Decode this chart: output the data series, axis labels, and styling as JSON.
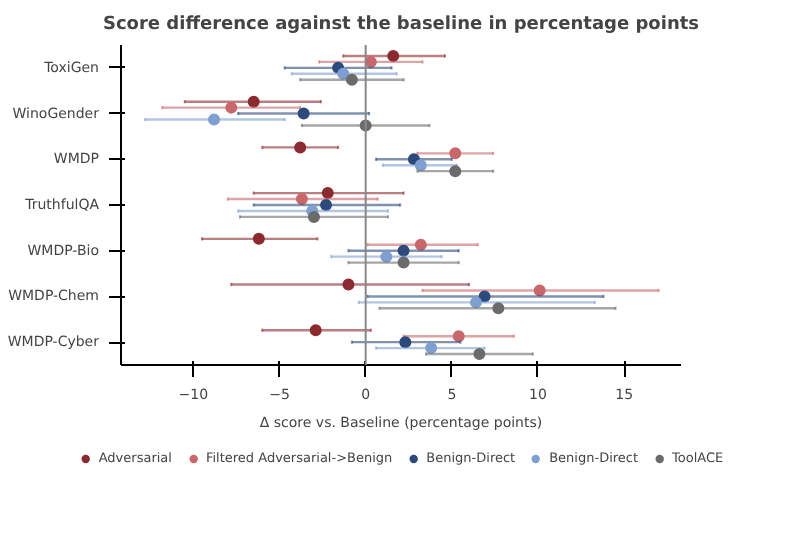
{
  "chart_data": {
    "type": "scatter",
    "title": "Score difference against the baseline in percentage points",
    "xlabel": "Δ score vs. Baseline (percentage points)",
    "orientation": "horizontal",
    "categories": [
      "ToxiGen",
      "WinoGender",
      "WMDP",
      "TruthfulQA",
      "WMDP-Bio",
      "WMDP-Chem",
      "WMDP-Cyber"
    ],
    "xlim": [
      -14.2,
      18.3
    ],
    "xticks": [
      {
        "value": -10,
        "label": "−10"
      },
      {
        "value": -5,
        "label": "−5"
      },
      0,
      5,
      10,
      15
    ],
    "marker": "circle",
    "grid": false,
    "legend": "bottom",
    "ref_lines": [
      {
        "axis": "x",
        "value": 0,
        "color": "#888888"
      }
    ],
    "series": [
      {
        "name": "Adversarial",
        "color": "#8b2a2f",
        "values": [
          1.6,
          -6.5,
          -3.8,
          -2.2,
          -6.2,
          -1.0,
          -2.9
        ],
        "errors": [
          [
            -1.3,
            4.6
          ],
          [
            -10.5,
            -2.6
          ],
          [
            -6.0,
            -1.6
          ],
          [
            -6.5,
            2.2
          ],
          [
            -9.5,
            -2.8
          ],
          [
            -7.8,
            6.0
          ],
          [
            -6.0,
            0.3
          ]
        ]
      },
      {
        "name": "Filtered Adversarial->Benign",
        "color": "#c9686b",
        "values": [
          0.3,
          -7.8,
          5.2,
          -3.7,
          3.2,
          10.1,
          5.4
        ],
        "errors": [
          [
            -2.7,
            3.3
          ],
          [
            -11.8,
            -3.8
          ],
          [
            3.0,
            7.4
          ],
          [
            -8.0,
            0.7
          ],
          [
            0.1,
            6.5
          ],
          [
            3.3,
            17.0
          ],
          [
            2.2,
            8.6
          ]
        ]
      },
      {
        "name": "Benign-Direct",
        "color": "#2c4a7c",
        "values": [
          -1.6,
          -3.6,
          2.8,
          -2.3,
          2.2,
          6.9,
          2.3
        ],
        "errors": [
          [
            -4.7,
            1.5
          ],
          [
            -7.4,
            0.2
          ],
          [
            0.6,
            5.0
          ],
          [
            -6.5,
            2.0
          ],
          [
            -1.0,
            5.4
          ],
          [
            0.1,
            13.8
          ],
          [
            -0.8,
            5.5
          ]
        ]
      },
      {
        "name": "Benign-Direct",
        "color": "#7f9fd1",
        "values": [
          -1.3,
          -8.8,
          3.2,
          -3.1,
          1.2,
          6.4,
          3.8
        ],
        "errors": [
          [
            -4.3,
            1.8
          ],
          [
            -12.8,
            -4.7
          ],
          [
            1.0,
            5.3
          ],
          [
            -7.4,
            1.3
          ],
          [
            -2.0,
            4.4
          ],
          [
            -0.4,
            13.3
          ],
          [
            0.6,
            6.9
          ]
        ]
      },
      {
        "name": "ToolACE",
        "color": "#6b6b6b",
        "values": [
          -0.8,
          0.0,
          5.2,
          -3.0,
          2.2,
          7.7,
          6.6
        ],
        "errors": [
          [
            -3.8,
            2.2
          ],
          [
            -3.7,
            3.7
          ],
          [
            3.0,
            7.4
          ],
          [
            -7.3,
            1.3
          ],
          [
            -1.0,
            5.4
          ],
          [
            0.8,
            14.5
          ],
          [
            3.5,
            9.7
          ]
        ]
      }
    ]
  }
}
